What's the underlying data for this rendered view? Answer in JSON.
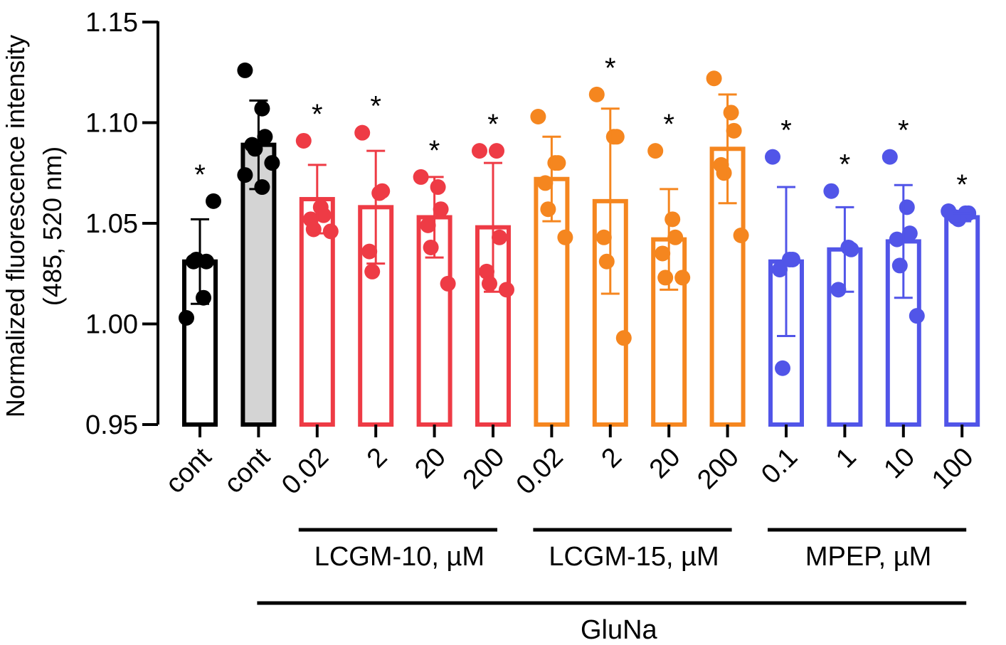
{
  "chart_data": {
    "type": "bar",
    "title": "",
    "ylabel_line1": "Normalized fluorescence intensity",
    "ylabel_line2": "(485, 520 nm)",
    "ylim": [
      0.95,
      1.15
    ],
    "yticks": [
      0.95,
      1.0,
      1.05,
      1.1,
      1.15
    ],
    "ytick_labels": [
      "0.95",
      "1.00",
      "1.05",
      "1.10",
      "1.15"
    ],
    "significance_marker": "*",
    "colors": {
      "black": "#000000",
      "red": "#ee3b45",
      "orange": "#f5861f",
      "blue": "#5155e8",
      "gray_fill": "#d4d4d4"
    },
    "bars": [
      {
        "label": "cont",
        "color": "black",
        "filled": false,
        "mean": 1.031,
        "sd": 0.021,
        "sig": true,
        "points": [
          1.003,
          1.013,
          1.031,
          1.031,
          1.032,
          1.061
        ]
      },
      {
        "label": "cont",
        "color": "black",
        "filled": true,
        "mean": 1.089,
        "sd": 0.022,
        "sig": false,
        "points": [
          1.126,
          1.107,
          1.093,
          1.089,
          1.087,
          1.08,
          1.074,
          1.068
        ]
      },
      {
        "label": "0.02",
        "color": "red",
        "filled": false,
        "mean": 1.062,
        "sd": 0.017,
        "sig": true,
        "points": [
          1.091,
          1.058,
          1.054,
          1.052,
          1.047,
          1.046
        ]
      },
      {
        "label": "2",
        "color": "red",
        "filled": false,
        "mean": 1.058,
        "sd": 0.028,
        "sig": true,
        "points": [
          1.095,
          1.065,
          1.066,
          1.036,
          1.026
        ]
      },
      {
        "label": "20",
        "color": "red",
        "filled": false,
        "mean": 1.053,
        "sd": 0.02,
        "sig": true,
        "points": [
          1.073,
          1.068,
          1.057,
          1.049,
          1.038,
          1.02
        ]
      },
      {
        "label": "200",
        "color": "red",
        "filled": false,
        "mean": 1.048,
        "sd": 0.032,
        "sig": true,
        "points": [
          1.086,
          1.086,
          1.043,
          1.026,
          1.02,
          1.017
        ]
      },
      {
        "label": "0.02",
        "color": "orange",
        "filled": false,
        "mean": 1.072,
        "sd": 0.021,
        "sig": false,
        "points": [
          1.103,
          1.08,
          1.08,
          1.07,
          1.057,
          1.043
        ]
      },
      {
        "label": "2",
        "color": "orange",
        "filled": false,
        "mean": 1.061,
        "sd": 0.046,
        "sig": true,
        "points": [
          1.114,
          1.093,
          1.093,
          1.043,
          1.031,
          0.993
        ]
      },
      {
        "label": "20",
        "color": "orange",
        "filled": false,
        "mean": 1.042,
        "sd": 0.025,
        "sig": true,
        "points": [
          1.086,
          1.052,
          1.043,
          1.035,
          1.023,
          1.023
        ]
      },
      {
        "label": "200",
        "color": "orange",
        "filled": false,
        "mean": 1.087,
        "sd": 0.027,
        "sig": false,
        "points": [
          1.122,
          1.105,
          1.096,
          1.079,
          1.075,
          1.044
        ]
      },
      {
        "label": "0.1",
        "color": "blue",
        "filled": false,
        "mean": 1.031,
        "sd": 0.037,
        "sig": true,
        "points": [
          1.083,
          1.032,
          1.032,
          1.027,
          0.978
        ]
      },
      {
        "label": "1",
        "color": "blue",
        "filled": false,
        "mean": 1.037,
        "sd": 0.021,
        "sig": true,
        "points": [
          1.066,
          1.038,
          1.037,
          1.017
        ]
      },
      {
        "label": "10",
        "color": "blue",
        "filled": false,
        "mean": 1.041,
        "sd": 0.028,
        "sig": true,
        "points": [
          1.083,
          1.058,
          1.045,
          1.042,
          1.029,
          1.004
        ]
      },
      {
        "label": "100",
        "color": "blue",
        "filled": false,
        "mean": 1.053,
        "sd": 0.002,
        "sig": true,
        "points": [
          1.056,
          1.055,
          1.055,
          1.053,
          1.052
        ]
      }
    ],
    "groups": [
      {
        "label": "LCGM-10, µM",
        "from": 2,
        "to": 5
      },
      {
        "label": "LCGM-15, µM",
        "from": 6,
        "to": 9
      },
      {
        "label": "MPEP, µM",
        "from": 10,
        "to": 13
      }
    ],
    "treatment": {
      "label": "GluNa",
      "from": 1,
      "to": 13
    }
  }
}
